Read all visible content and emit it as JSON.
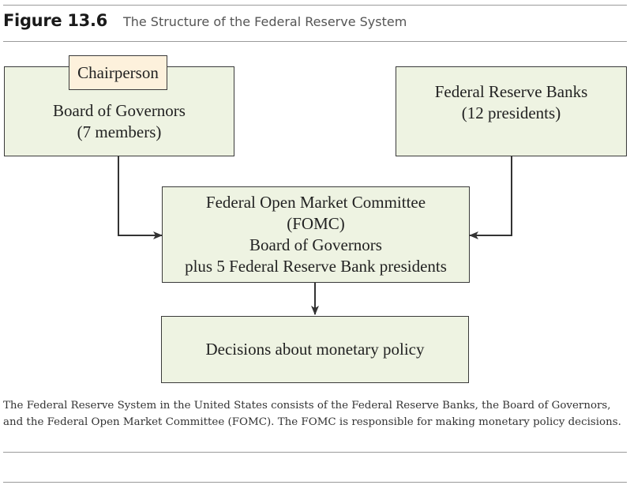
{
  "figure": {
    "label": "Figure 13.6",
    "title": "The Structure of the Federal Reserve System"
  },
  "nodes": {
    "chairperson": "Chairperson",
    "board": [
      "Board of Governors",
      "(7 members)"
    ],
    "banks": [
      "Federal Reserve Banks",
      "(12 presidents)"
    ],
    "fomc": [
      "Federal Open Market Committee",
      "(FOMC)",
      "Board of Governors",
      "plus 5 Federal Reserve Bank presidents"
    ],
    "decisions": "Decisions about monetary policy"
  },
  "caption": "The Federal Reserve System in the United States consists of the Federal Reserve Banks, the Board of Governors, and the Federal Open Market Committee (FOMC). The FOMC is responsible for making monetary policy decisions.",
  "colors": {
    "box_fill": "#eef3e2",
    "chair_fill": "#fdf1dc",
    "line": "#333333"
  }
}
